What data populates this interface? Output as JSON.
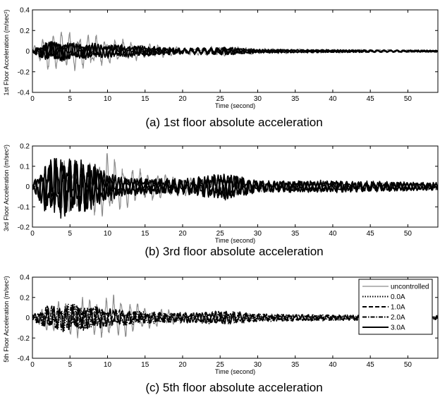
{
  "chart_data": [
    {
      "type": "line",
      "caption": "(a) 1st floor absolute acceleration",
      "xlabel": "Time (second)",
      "ylabel": "1st Floor Acceleration (m/sec²)",
      "xlim": [
        0,
        54
      ],
      "ylim": [
        -0.4,
        0.4
      ],
      "xticks": [
        0,
        5,
        10,
        15,
        20,
        25,
        30,
        35,
        40,
        45,
        50
      ],
      "yticks": [
        -0.4,
        -0.2,
        0,
        0.2,
        0.4
      ],
      "ytick_labels": [
        "-0.4",
        "-0.2",
        "0",
        "0.2",
        "0.4"
      ],
      "grid": false,
      "legend": null,
      "series": [
        {
          "name": "uncontrolled",
          "color": "#8c8c8c",
          "envelope": {
            "t": [
              0,
              2,
              4,
              6,
              10,
              15,
              20,
              26,
              30,
              40,
              54
            ],
            "amplitude": [
              0.03,
              0.2,
              0.22,
              0.2,
              0.14,
              0.08,
              0.04,
              0.05,
              0.03,
              0.02,
              0.015
            ]
          }
        },
        {
          "name": "0.0A",
          "color": "#000000",
          "envelope": {
            "t": [
              0,
              2,
              4,
              6,
              10,
              15,
              20,
              26,
              30,
              40,
              54
            ],
            "amplitude": [
              0.02,
              0.1,
              0.1,
              0.08,
              0.07,
              0.05,
              0.03,
              0.04,
              0.02,
              0.015,
              0.01
            ]
          }
        },
        {
          "name": "1.0A",
          "color": "#000000",
          "envelope": {
            "t": [
              0,
              2,
              4,
              6,
              10,
              15,
              20,
              26,
              30,
              40,
              54
            ],
            "amplitude": [
              0.02,
              0.1,
              0.1,
              0.08,
              0.07,
              0.05,
              0.03,
              0.04,
              0.02,
              0.015,
              0.01
            ]
          }
        },
        {
          "name": "2.0A",
          "color": "#000000",
          "envelope": {
            "t": [
              0,
              2,
              4,
              6,
              10,
              15,
              20,
              26,
              30,
              40,
              54
            ],
            "amplitude": [
              0.02,
              0.1,
              0.1,
              0.08,
              0.07,
              0.05,
              0.03,
              0.04,
              0.02,
              0.015,
              0.01
            ]
          }
        },
        {
          "name": "3.0A",
          "color": "#000000",
          "envelope": {
            "t": [
              0,
              2,
              4,
              6,
              10,
              15,
              20,
              26,
              30,
              40,
              54
            ],
            "amplitude": [
              0.02,
              0.1,
              0.1,
              0.08,
              0.07,
              0.05,
              0.03,
              0.04,
              0.02,
              0.015,
              0.01
            ]
          }
        }
      ]
    },
    {
      "type": "line",
      "caption": "(b) 3rd floor absolute acceleration",
      "xlabel": "Time (second)",
      "ylabel": "3rd Floor Acceleration (m/sec²)",
      "xlim": [
        0,
        54
      ],
      "ylim": [
        -0.2,
        0.2
      ],
      "xticks": [
        0,
        5,
        10,
        15,
        20,
        25,
        30,
        35,
        40,
        45,
        50
      ],
      "yticks": [
        -0.2,
        -0.1,
        0,
        0.1,
        0.2
      ],
      "ytick_labels": [
        "-0.2",
        "-0.1",
        "0",
        "0.1",
        "0.2"
      ],
      "grid": false,
      "legend": null,
      "series": [
        {
          "name": "uncontrolled",
          "color": "#8c8c8c",
          "envelope": {
            "t": [
              0,
              2,
              4,
              6,
              8,
              10,
              12,
              15,
              20,
              26,
              30,
              40,
              54
            ],
            "amplitude": [
              0.02,
              0.12,
              0.15,
              0.13,
              0.15,
              0.18,
              0.12,
              0.08,
              0.05,
              0.05,
              0.03,
              0.025,
              0.02
            ]
          }
        },
        {
          "name": "0.0A",
          "color": "#000000",
          "envelope": {
            "t": [
              0,
              2,
              4,
              6,
              8,
              10,
              12,
              15,
              20,
              26,
              30,
              40,
              54
            ],
            "amplitude": [
              0.02,
              0.14,
              0.16,
              0.14,
              0.12,
              0.07,
              0.05,
              0.04,
              0.04,
              0.07,
              0.03,
              0.03,
              0.02
            ]
          }
        },
        {
          "name": "1.0A",
          "color": "#000000",
          "envelope": {
            "t": [
              0,
              2,
              4,
              6,
              8,
              10,
              12,
              15,
              20,
              26,
              30,
              40,
              54
            ],
            "amplitude": [
              0.02,
              0.14,
              0.16,
              0.14,
              0.12,
              0.07,
              0.05,
              0.04,
              0.04,
              0.07,
              0.03,
              0.03,
              0.02
            ]
          }
        },
        {
          "name": "2.0A",
          "color": "#000000",
          "envelope": {
            "t": [
              0,
              2,
              4,
              6,
              8,
              10,
              12,
              15,
              20,
              26,
              30,
              40,
              54
            ],
            "amplitude": [
              0.02,
              0.14,
              0.16,
              0.14,
              0.12,
              0.07,
              0.05,
              0.04,
              0.04,
              0.07,
              0.03,
              0.03,
              0.02
            ]
          }
        },
        {
          "name": "3.0A",
          "color": "#000000",
          "envelope": {
            "t": [
              0,
              2,
              4,
              6,
              8,
              10,
              12,
              15,
              20,
              26,
              30,
              40,
              54
            ],
            "amplitude": [
              0.02,
              0.14,
              0.16,
              0.14,
              0.12,
              0.07,
              0.05,
              0.04,
              0.04,
              0.07,
              0.03,
              0.03,
              0.02
            ]
          }
        }
      ]
    },
    {
      "type": "line",
      "caption": "(c) 5th floor absolute acceleration",
      "xlabel": "Time (second)",
      "ylabel": "5th Floor Acceleration (m/sec²)",
      "xlim": [
        0,
        54
      ],
      "ylim": [
        -0.4,
        0.4
      ],
      "xticks": [
        0,
        5,
        10,
        15,
        20,
        25,
        30,
        35,
        40,
        45,
        50
      ],
      "yticks": [
        -0.4,
        -0.2,
        0,
        0.2,
        0.4
      ],
      "ytick_labels": [
        "-0.4",
        "-0.2",
        "0",
        "0.2",
        "0.4"
      ],
      "grid": false,
      "legend": "top-right",
      "series": [
        {
          "name": "uncontrolled",
          "color": "#8c8c8c",
          "dash": "solid",
          "envelope": {
            "t": [
              0,
              2,
              5,
              8,
              10,
              12,
              15,
              20,
              26,
              30,
              40,
              54
            ],
            "amplitude": [
              0.03,
              0.15,
              0.2,
              0.2,
              0.22,
              0.22,
              0.12,
              0.06,
              0.06,
              0.04,
              0.03,
              0.03
            ]
          }
        },
        {
          "name": "0.0A",
          "color": "#000000",
          "dash": "dotted",
          "envelope": {
            "t": [
              0,
              2,
              5,
              8,
              10,
              12,
              15,
              20,
              26,
              30,
              40,
              54
            ],
            "amplitude": [
              0.03,
              0.12,
              0.14,
              0.12,
              0.1,
              0.08,
              0.06,
              0.05,
              0.07,
              0.04,
              0.03,
              0.02
            ]
          }
        },
        {
          "name": "1.0A",
          "color": "#000000",
          "dash": "dashed",
          "envelope": {
            "t": [
              0,
              2,
              5,
              8,
              10,
              12,
              15,
              20,
              26,
              30,
              40,
              54
            ],
            "amplitude": [
              0.03,
              0.12,
              0.14,
              0.12,
              0.1,
              0.08,
              0.06,
              0.05,
              0.07,
              0.04,
              0.03,
              0.02
            ]
          }
        },
        {
          "name": "2.0A",
          "color": "#000000",
          "dash": "dashdot",
          "envelope": {
            "t": [
              0,
              2,
              5,
              8,
              10,
              12,
              15,
              20,
              26,
              30,
              40,
              54
            ],
            "amplitude": [
              0.03,
              0.12,
              0.14,
              0.12,
              0.1,
              0.08,
              0.06,
              0.05,
              0.07,
              0.04,
              0.03,
              0.02
            ]
          }
        },
        {
          "name": "3.0A",
          "color": "#000000",
          "dash": "solid",
          "envelope": {
            "t": [
              0,
              2,
              5,
              8,
              10,
              12,
              15,
              20,
              26,
              30,
              40,
              54
            ],
            "amplitude": [
              0.03,
              0.12,
              0.14,
              0.12,
              0.1,
              0.08,
              0.06,
              0.05,
              0.07,
              0.04,
              0.03,
              0.02
            ]
          }
        }
      ]
    }
  ]
}
